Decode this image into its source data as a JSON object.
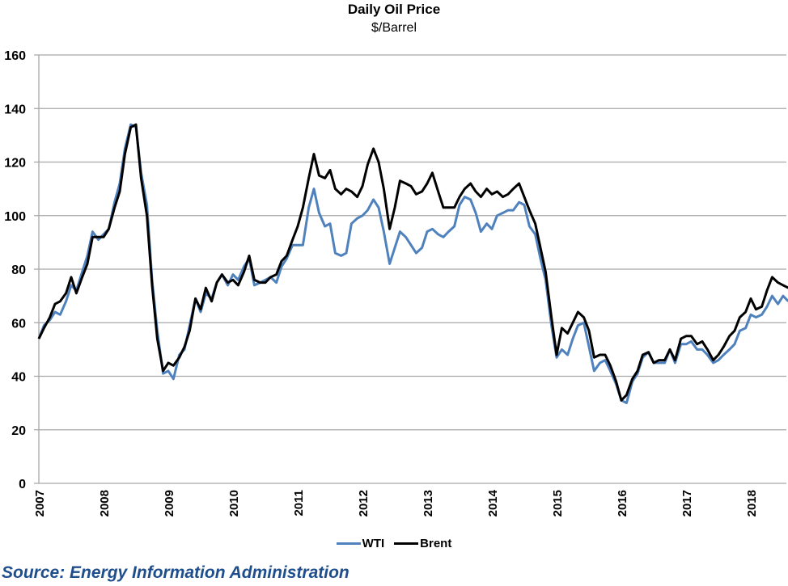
{
  "chart_data": {
    "type": "line",
    "title": "Daily Oil Price",
    "subtitle": "$/Barrel",
    "xlabel": "",
    "ylabel": "",
    "ylim": [
      0,
      160
    ],
    "yticks": [
      0,
      20,
      40,
      60,
      80,
      100,
      120,
      140,
      160
    ],
    "xticks": [
      "2007",
      "2008",
      "2009",
      "2010",
      "2011",
      "2012",
      "2013",
      "2014",
      "2015",
      "2016",
      "2017",
      "2018"
    ],
    "grid": true,
    "legend_position": "bottom",
    "x": [
      2007.0,
      2007.08,
      2007.17,
      2007.25,
      2007.33,
      2007.42,
      2007.5,
      2007.58,
      2007.67,
      2007.75,
      2007.83,
      2007.92,
      2008.0,
      2008.08,
      2008.17,
      2008.25,
      2008.33,
      2008.42,
      2008.5,
      2008.58,
      2008.67,
      2008.75,
      2008.83,
      2008.92,
      2009.0,
      2009.08,
      2009.17,
      2009.25,
      2009.33,
      2009.42,
      2009.5,
      2009.58,
      2009.67,
      2009.75,
      2009.83,
      2009.92,
      2010.0,
      2010.08,
      2010.17,
      2010.25,
      2010.33,
      2010.42,
      2010.5,
      2010.58,
      2010.67,
      2010.75,
      2010.83,
      2010.92,
      2011.0,
      2011.08,
      2011.17,
      2011.25,
      2011.33,
      2011.42,
      2011.5,
      2011.58,
      2011.67,
      2011.75,
      2011.83,
      2011.92,
      2012.0,
      2012.08,
      2012.17,
      2012.25,
      2012.33,
      2012.42,
      2012.5,
      2012.58,
      2012.67,
      2012.75,
      2012.83,
      2012.92,
      2013.0,
      2013.08,
      2013.17,
      2013.25,
      2013.33,
      2013.42,
      2013.5,
      2013.58,
      2013.67,
      2013.75,
      2013.83,
      2013.92,
      2014.0,
      2014.08,
      2014.17,
      2014.25,
      2014.33,
      2014.42,
      2014.5,
      2014.58,
      2014.67,
      2014.75,
      2014.83,
      2014.92,
      2015.0,
      2015.08,
      2015.17,
      2015.25,
      2015.33,
      2015.42,
      2015.5,
      2015.58,
      2015.67,
      2015.75,
      2015.83,
      2015.92,
      2016.0,
      2016.08,
      2016.17,
      2016.25,
      2016.33,
      2016.42,
      2016.5,
      2016.58,
      2016.67,
      2016.75,
      2016.83,
      2016.92,
      2017.0,
      2017.08,
      2017.17,
      2017.25,
      2017.33,
      2017.42,
      2017.5,
      2017.58,
      2017.67,
      2017.75,
      2017.83,
      2017.92,
      2018.0,
      2018.08,
      2018.17,
      2018.25,
      2018.33,
      2018.42,
      2018.5,
      2018.58
    ],
    "series": [
      {
        "name": "WTI",
        "color": "#4f81bd",
        "values": [
          54,
          59,
          61,
          64,
          63,
          68,
          74,
          72,
          79,
          85,
          94,
          91,
          93,
          95,
          105,
          112,
          125,
          134,
          133,
          116,
          104,
          76,
          57,
          41,
          42,
          39,
          48,
          50,
          59,
          69,
          64,
          71,
          69,
          75,
          78,
          74,
          78,
          76,
          81,
          84,
          74,
          75,
          76,
          77,
          75,
          81,
          84,
          89,
          89,
          89,
          103,
          110,
          101,
          96,
          97,
          86,
          85,
          86,
          97,
          99,
          100,
          102,
          106,
          103,
          94,
          82,
          88,
          94,
          92,
          89,
          86,
          88,
          94,
          95,
          93,
          92,
          94,
          96,
          104,
          107,
          106,
          101,
          94,
          97,
          95,
          100,
          101,
          102,
          102,
          105,
          104,
          96,
          93,
          84,
          76,
          59,
          47,
          50,
          48,
          54,
          59,
          60,
          51,
          42,
          45,
          46,
          42,
          37,
          31,
          30,
          38,
          41,
          47,
          49,
          45,
          45,
          45,
          50,
          45,
          52,
          52,
          53,
          50,
          50,
          48,
          45,
          46,
          48,
          50,
          52,
          57,
          58,
          63,
          62,
          63,
          66,
          70,
          67,
          70,
          68
        ]
      },
      {
        "name": "Brent",
        "color": "#000000",
        "values": [
          54,
          58,
          62,
          67,
          68,
          71,
          77,
          71,
          77,
          82,
          92,
          92,
          92,
          95,
          103,
          109,
          123,
          133,
          134,
          114,
          100,
          74,
          54,
          42,
          45,
          44,
          47,
          51,
          57,
          69,
          65,
          73,
          68,
          75,
          78,
          75,
          76,
          74,
          79,
          85,
          76,
          75,
          75,
          77,
          78,
          83,
          85,
          91,
          96,
          103,
          114,
          123,
          115,
          114,
          117,
          110,
          108,
          110,
          109,
          107,
          111,
          119,
          125,
          120,
          110,
          95,
          103,
          113,
          112,
          111,
          108,
          109,
          112,
          116,
          109,
          103,
          103,
          103,
          107,
          110,
          112,
          109,
          107,
          110,
          108,
          109,
          107,
          108,
          110,
          112,
          107,
          102,
          97,
          88,
          79,
          62,
          48,
          58,
          56,
          60,
          64,
          62,
          57,
          47,
          48,
          48,
          44,
          38,
          31,
          33,
          39,
          42,
          48,
          49,
          45,
          46,
          46,
          50,
          46,
          54,
          55,
          55,
          52,
          53,
          50,
          46,
          48,
          51,
          55,
          57,
          62,
          64,
          69,
          65,
          66,
          72,
          77,
          75,
          74,
          73
        ]
      }
    ]
  },
  "legend": {
    "items": [
      {
        "label": "WTI",
        "color": "#4f81bd"
      },
      {
        "label": "Brent",
        "color": "#000000"
      }
    ]
  },
  "source": "Source: Energy Information Administration"
}
